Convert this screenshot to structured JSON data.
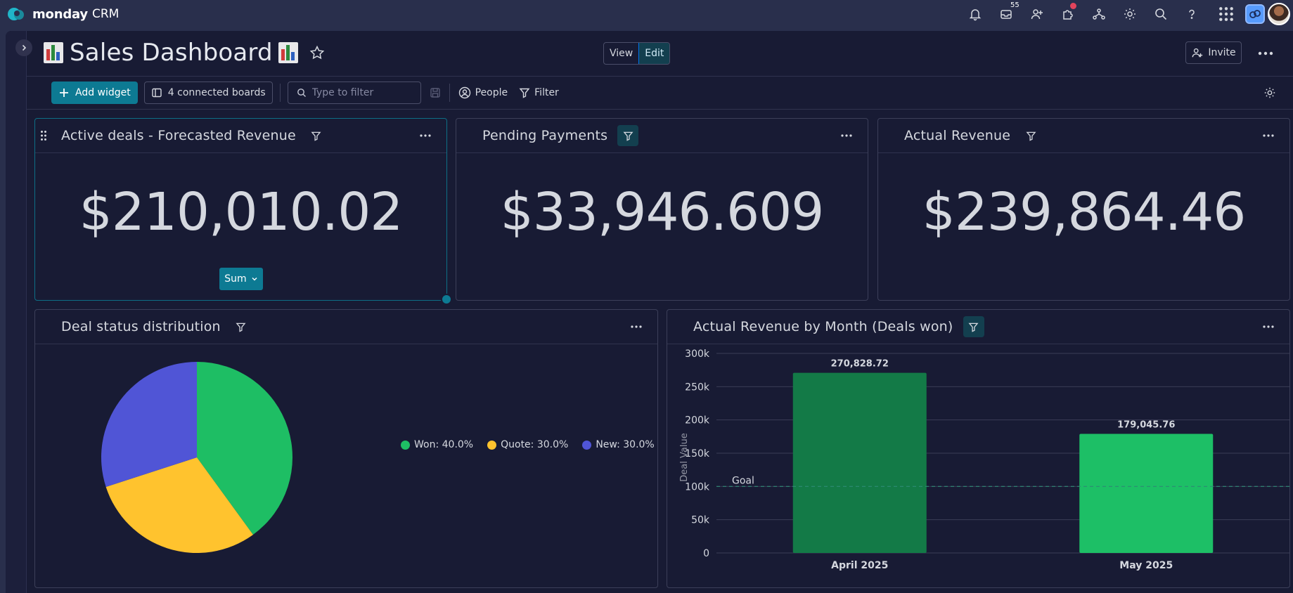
{
  "app": {
    "brand": "monday",
    "product": "CRM",
    "inbox_count": "55"
  },
  "header": {
    "title": "Sales Dashboard",
    "view_label": "View",
    "edit_label": "Edit",
    "invite_label": "Invite"
  },
  "toolbar": {
    "add_widget_label": "Add widget",
    "connected_boards_label": "4 connected boards",
    "search_placeholder": "Type to filter",
    "people_label": "People",
    "filter_label": "Filter"
  },
  "widgets": {
    "forecast": {
      "title": "Active deals - Forecasted Revenue",
      "value": "$210,010.02",
      "aggregation": "Sum"
    },
    "pending": {
      "title": "Pending Payments",
      "value": "$33,946.609"
    },
    "actual": {
      "title": "Actual Revenue",
      "value": "$239,864.46"
    },
    "status": {
      "title": "Deal status distribution"
    },
    "by_month": {
      "title": "Actual Revenue by Month (Deals won)"
    }
  },
  "colors": {
    "won": "#1ebe64",
    "quote": "#ffc32e",
    "new": "#5055d6",
    "bar_dark": "#137a47",
    "bar_light": "#1dbf66",
    "accent": "#0d7a93"
  },
  "chart_data": [
    {
      "type": "pie",
      "categories": [
        "Won",
        "Quote",
        "New"
      ],
      "values": [
        40.0,
        30.0,
        30.0
      ],
      "legend_labels": [
        "Won: 40.0%",
        "Quote: 30.0%",
        "New: 30.0%"
      ],
      "legend_position": "right"
    },
    {
      "type": "bar",
      "categories": [
        "April 2025",
        "May 2025"
      ],
      "values": [
        270828.72,
        179045.76
      ],
      "data_labels": [
        "270,828.72",
        "179,045.76"
      ],
      "ylabel": "Deal Value",
      "ylim": [
        0,
        300000
      ],
      "yticks": [
        "0",
        "50k",
        "100k",
        "150k",
        "200k",
        "250k",
        "300k"
      ],
      "goal": {
        "label": "Goal",
        "value": 100000
      },
      "grid": true
    }
  ]
}
